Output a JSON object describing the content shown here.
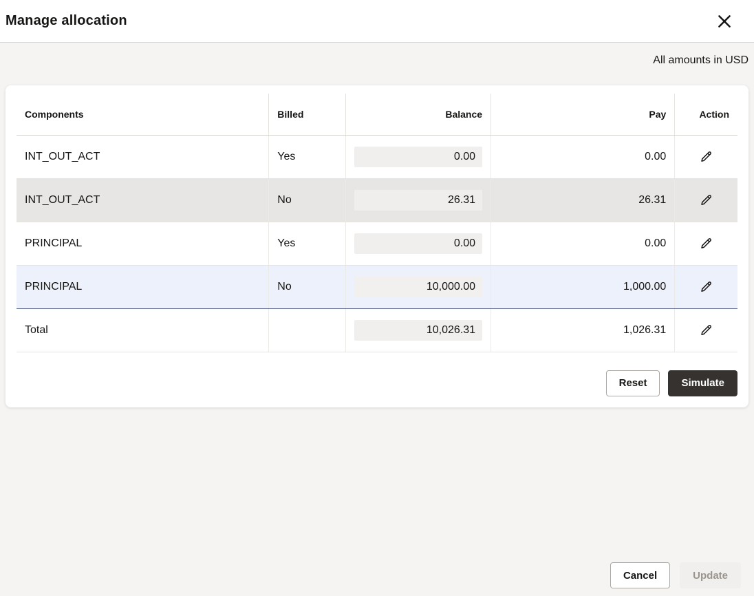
{
  "modal": {
    "title": "Manage allocation",
    "amounts_note": "All amounts in USD"
  },
  "table": {
    "columns": [
      {
        "label": "Components",
        "align": "left"
      },
      {
        "label": "Billed",
        "align": "left"
      },
      {
        "label": "Balance",
        "align": "right"
      },
      {
        "label": "Pay",
        "align": "right"
      },
      {
        "label": "Action",
        "align": "right"
      }
    ],
    "rows": [
      {
        "component": "INT_OUT_ACT",
        "billed": "Yes",
        "balance": "0.00",
        "pay": "0.00",
        "variant": "white"
      },
      {
        "component": "INT_OUT_ACT",
        "billed": "No",
        "balance": "26.31",
        "pay": "26.31",
        "variant": "gray"
      },
      {
        "component": "PRINCIPAL",
        "billed": "Yes",
        "balance": "0.00",
        "pay": "0.00",
        "variant": "white"
      },
      {
        "component": "PRINCIPAL",
        "billed": "No",
        "balance": "10,000.00",
        "pay": "1,000.00",
        "variant": "selected"
      },
      {
        "component": "Total",
        "billed": "",
        "balance": "10,026.31",
        "pay": "1,026.31",
        "variant": "total"
      }
    ]
  },
  "card_actions": {
    "reset": "Reset",
    "simulate": "Simulate"
  },
  "footer_actions": {
    "cancel": "Cancel",
    "update": "Update"
  },
  "colors": {
    "page_background": "#f5f4f2",
    "selected_row": "#edf1fb",
    "gray_row": "#e8e6e4",
    "field_background": "#f1efed",
    "dark_button": "#35322f"
  }
}
